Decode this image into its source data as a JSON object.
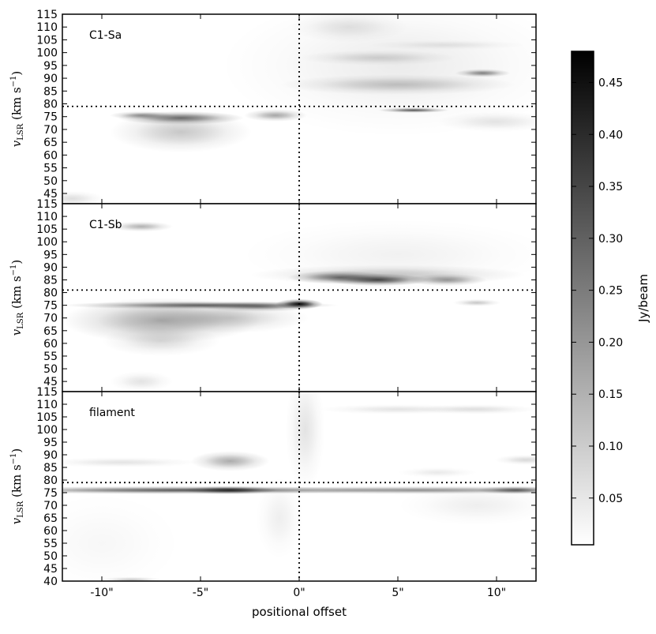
{
  "chart_data": {
    "type": "heatmap",
    "xlabel": "positional offset",
    "x_range": [
      -12,
      12
    ],
    "x_ticks": [
      -10,
      -5,
      0,
      5,
      10
    ],
    "x_tick_labels": [
      "-10\"",
      "-5\"",
      "0\"",
      "5\"",
      "10\""
    ],
    "reference_offset": 0,
    "colormap": "gray_r",
    "colorbar": {
      "label": "Jy/beam",
      "range": [
        0.005,
        0.48
      ],
      "ticks": [
        0.05,
        0.1,
        0.15,
        0.2,
        0.25,
        0.3,
        0.35,
        0.4,
        0.45
      ],
      "tick_labels": [
        "0.05",
        "0.10",
        "0.15",
        "0.20",
        "0.25",
        "0.30",
        "0.35",
        "0.40",
        "0.45"
      ]
    },
    "panels": [
      {
        "name": "C1-Sa",
        "ylabel_main": "v",
        "ylabel_sub": "LSR",
        "ylabel_units": "(km s",
        "ylabel_exp": "−1",
        "ylabel_close": ")",
        "ylim": [
          41,
          115
        ],
        "y_ticks": [
          45,
          50,
          55,
          60,
          65,
          70,
          75,
          80,
          85,
          90,
          95,
          100,
          105,
          110,
          115
        ],
        "systemic_velocity": 79,
        "emission": [
          {
            "x": -6,
            "v": 74.5,
            "sx": 1.6,
            "sv": 1.3,
            "peak": 0.26
          },
          {
            "x": -8,
            "v": 75.5,
            "sx": 0.8,
            "sv": 0.8,
            "peak": 0.18
          },
          {
            "x": -6,
            "v": 69,
            "sx": 1.8,
            "sv": 4,
            "peak": 0.1
          },
          {
            "x": -1.2,
            "v": 75.5,
            "sx": 0.8,
            "sv": 1.2,
            "peak": 0.16
          },
          {
            "x": 5.8,
            "v": 77.5,
            "sx": 0.9,
            "sv": 0.5,
            "peak": 0.3
          },
          {
            "x": 9.3,
            "v": 92,
            "sx": 0.7,
            "sv": 0.8,
            "peak": 0.22
          },
          {
            "x": 5,
            "v": 87.5,
            "sx": 3,
            "sv": 2,
            "peak": 0.1
          },
          {
            "x": 4,
            "v": 98,
            "sx": 2,
            "sv": 1.5,
            "peak": 0.07
          },
          {
            "x": 5,
            "v": 95,
            "sx": 4.5,
            "sv": 14,
            "peak": 0.035
          },
          {
            "x": 2.5,
            "v": 110,
            "sx": 1.5,
            "sv": 3,
            "peak": 0.05
          },
          {
            "x": 10,
            "v": 73,
            "sx": 1.5,
            "sv": 2,
            "peak": 0.05
          },
          {
            "x": 7.5,
            "v": 103,
            "sx": 2,
            "sv": 1,
            "peak": 0.04
          },
          {
            "x": -11.5,
            "v": 43,
            "sx": 0.8,
            "sv": 1.5,
            "peak": 0.06
          }
        ]
      },
      {
        "name": "C1-Sb",
        "ylabel_main": "v",
        "ylabel_sub": "LSR",
        "ylabel_units": "(km s",
        "ylabel_exp": "−1",
        "ylabel_close": ")",
        "ylim": [
          41,
          115
        ],
        "y_ticks": [
          45,
          50,
          55,
          60,
          65,
          70,
          75,
          80,
          85,
          90,
          95,
          100,
          105,
          110,
          115
        ],
        "systemic_velocity": 81,
        "emission": [
          {
            "x": 0,
            "v": 75.5,
            "sx": 0.6,
            "sv": 1,
            "peak": 0.45
          },
          {
            "x": -5,
            "v": 75,
            "sx": 3.5,
            "sv": 0.8,
            "peak": 0.28
          },
          {
            "x": -2,
            "v": 74.5,
            "sx": 1.5,
            "sv": 1,
            "peak": 0.2
          },
          {
            "x": -7,
            "v": 69,
            "sx": 2.5,
            "sv": 4.5,
            "peak": 0.16
          },
          {
            "x": -3.5,
            "v": 70,
            "sx": 2,
            "sv": 3,
            "peak": 0.09
          },
          {
            "x": -7,
            "v": 61,
            "sx": 1.5,
            "sv": 3,
            "peak": 0.07
          },
          {
            "x": -8,
            "v": 106,
            "sx": 0.8,
            "sv": 1,
            "peak": 0.14
          },
          {
            "x": 4,
            "v": 85,
            "sx": 1.3,
            "sv": 1.2,
            "peak": 0.32
          },
          {
            "x": 2,
            "v": 86,
            "sx": 1.3,
            "sv": 1.3,
            "peak": 0.24
          },
          {
            "x": 7.5,
            "v": 85,
            "sx": 1,
            "sv": 1.2,
            "peak": 0.18
          },
          {
            "x": 4.5,
            "v": 87,
            "sx": 3.5,
            "sv": 2,
            "peak": 0.1
          },
          {
            "x": 9,
            "v": 76,
            "sx": 0.6,
            "sv": 0.7,
            "peak": 0.1
          },
          {
            "x": 5,
            "v": 95,
            "sx": 4,
            "sv": 7,
            "peak": 0.025
          },
          {
            "x": -8,
            "v": 45,
            "sx": 0.8,
            "sv": 2,
            "peak": 0.05
          }
        ]
      },
      {
        "name": "filament",
        "ylabel_main": "v",
        "ylabel_sub": "LSR",
        "ylabel_units": "(km s",
        "ylabel_exp": "−1",
        "ylabel_close": ")",
        "ylim": [
          40,
          115
        ],
        "y_ticks": [
          40,
          45,
          50,
          55,
          60,
          65,
          70,
          75,
          80,
          85,
          90,
          95,
          100,
          105,
          110,
          115
        ],
        "systemic_velocity": 79,
        "emission": [
          {
            "x": -6,
            "v": 76,
            "sx": 5.5,
            "sv": 0.8,
            "peak": 0.3
          },
          {
            "x": -3.5,
            "v": 76,
            "sx": 1.2,
            "sv": 0.8,
            "peak": 0.32
          },
          {
            "x": 6,
            "v": 76,
            "sx": 5,
            "sv": 0.8,
            "peak": 0.2
          },
          {
            "x": 11,
            "v": 76,
            "sx": 1,
            "sv": 0.8,
            "peak": 0.26
          },
          {
            "x": -3.5,
            "v": 87.5,
            "sx": 1,
            "sv": 2,
            "peak": 0.15
          },
          {
            "x": -9,
            "v": 87,
            "sx": 2,
            "sv": 1,
            "peak": 0.05
          },
          {
            "x": 0.3,
            "v": 100,
            "sx": 0.5,
            "sv": 12,
            "peak": 0.05
          },
          {
            "x": 5,
            "v": 108,
            "sx": 2,
            "sv": 1,
            "peak": 0.05
          },
          {
            "x": 9,
            "v": 108,
            "sx": 1.5,
            "sv": 1,
            "peak": 0.06
          },
          {
            "x": 11.5,
            "v": 88,
            "sx": 0.8,
            "sv": 1,
            "peak": 0.07
          },
          {
            "x": 7,
            "v": 83,
            "sx": 1,
            "sv": 1,
            "peak": 0.04
          },
          {
            "x": 9,
            "v": 70,
            "sx": 2,
            "sv": 4,
            "peak": 0.03
          },
          {
            "x": -1,
            "v": 65,
            "sx": 0.6,
            "sv": 8,
            "peak": 0.03
          },
          {
            "x": -8.5,
            "v": 40.5,
            "sx": 0.8,
            "sv": 0.6,
            "peak": 0.1
          },
          {
            "x": -10,
            "v": 55,
            "sx": 2,
            "sv": 10,
            "peak": 0.015
          }
        ]
      }
    ]
  }
}
